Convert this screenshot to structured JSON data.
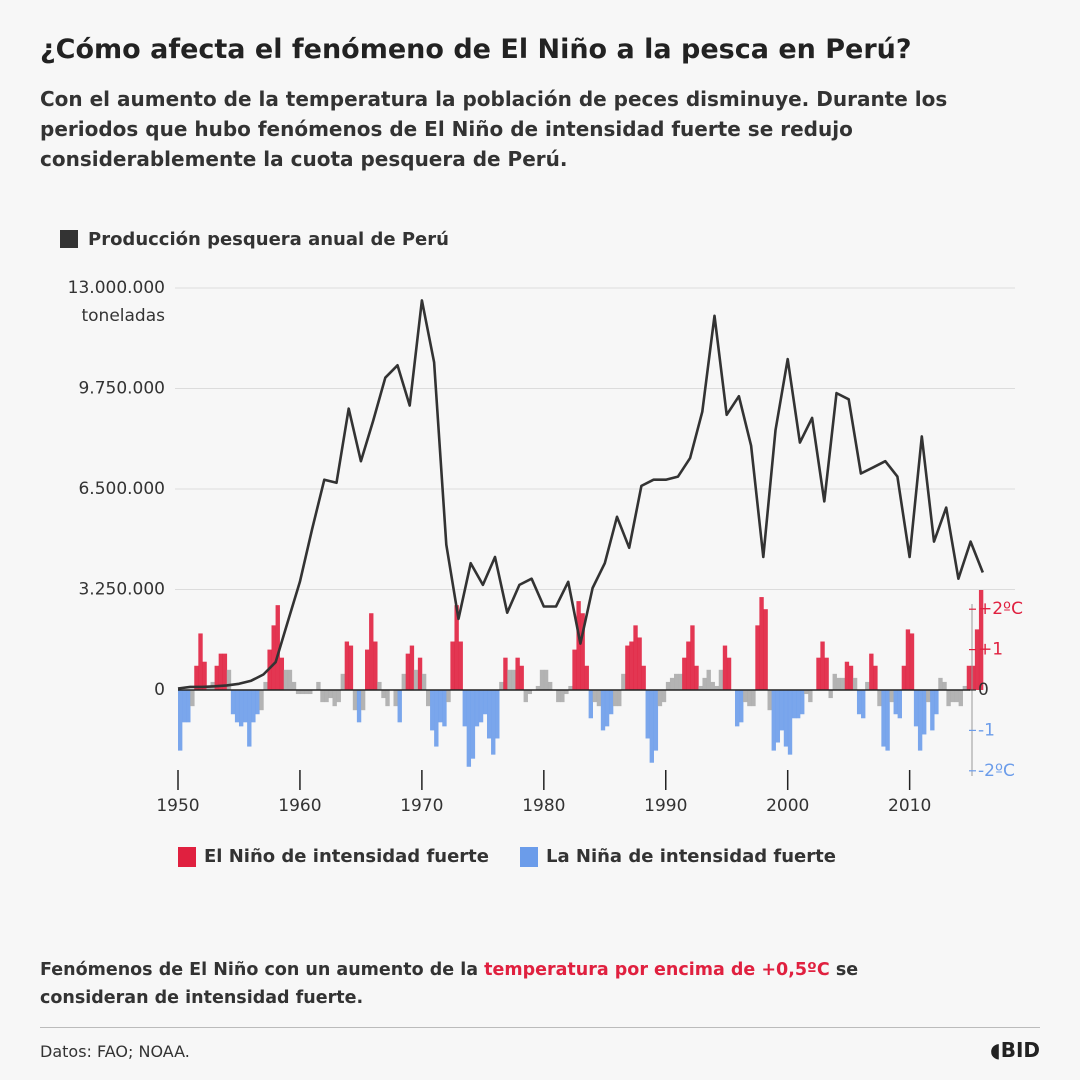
{
  "title": "¿Cómo afecta el fenómeno de El Niño a la pesca en Perú?",
  "subtitle": "Con el aumento de la temperatura la población de peces disminuye. Durante los periodos que hubo fenómenos de El Niño de intensidad fuerte se redujo considerablemente la cuota pesquera de Perú.",
  "note": {
    "before": "Fenómenos de El Niño con un aumento de la ",
    "highlight": "temperatura por encima de +0,5ºC",
    "after": " se consideran de intensidad fuerte."
  },
  "source": "Datos: FAO; NOAA.",
  "logo": "BID",
  "chart_data": [
    {
      "type": "line",
      "series": [
        {
          "name": "Producción pesquera anual de Perú",
          "color": "#333333",
          "values": [
            50000,
            100000,
            100000,
            120000,
            150000,
            200000,
            300000,
            500000,
            900000,
            2200000,
            3500000,
            5200000,
            6800000,
            6700000,
            9100000,
            7400000,
            8700000,
            10100000,
            10500000,
            9200000,
            12600000,
            10600000,
            4700000,
            2300000,
            4100000,
            3400000,
            4300000,
            2500000,
            3400000,
            3600000,
            2700000,
            2700000,
            3500000,
            1500000,
            3300000,
            4100000,
            5600000,
            4600000,
            6600000,
            6800000,
            6800000,
            6900000,
            7500000,
            9000000,
            12100000,
            8900000,
            9500000,
            7900000,
            4300000,
            8400000,
            10700000,
            8000000,
            8800000,
            6100000,
            9600000,
            9400000,
            7000000,
            7200000,
            7400000,
            6900000,
            4300000,
            8200000,
            4800000,
            5900000,
            3600000,
            4800000,
            3800000
          ]
        }
      ],
      "x": [
        1950,
        1951,
        1952,
        1953,
        1954,
        1955,
        1956,
        1957,
        1958,
        1959,
        1960,
        1961,
        1962,
        1963,
        1964,
        1965,
        1966,
        1967,
        1968,
        1969,
        1970,
        1971,
        1972,
        1973,
        1974,
        1975,
        1976,
        1977,
        1978,
        1979,
        1980,
        1981,
        1982,
        1983,
        1984,
        1985,
        1986,
        1987,
        1988,
        1989,
        1990,
        1991,
        1992,
        1993,
        1994,
        1995,
        1996,
        1997,
        1998,
        1999,
        2000,
        2001,
        2002,
        2003,
        2004,
        2005,
        2006,
        2007,
        2008,
        2009,
        2010,
        2011,
        2012,
        2013,
        2014,
        2015,
        2016
      ],
      "xlim": [
        1950,
        2017
      ],
      "xticks": [
        1950,
        1960,
        1970,
        1980,
        1990,
        2000,
        2010
      ],
      "ylim": [
        0,
        13000000
      ],
      "yticks": [
        0,
        {
          "value": 3250000,
          "label": "3.250.000"
        },
        {
          "value": 6500000,
          "label": "6.500.000"
        },
        {
          "value": 9750000,
          "label": "9.750.000"
        },
        {
          "value": 13000000,
          "label": "13.000.000"
        }
      ],
      "y_unit": "toneladas",
      "grid": true
    },
    {
      "type": "bar",
      "xlim": [
        1950,
        2016
      ],
      "ylim": [
        -2.5,
        2.5
      ],
      "yticks": [
        {
          "value": 2,
          "label": "+2ºC"
        },
        {
          "value": 1,
          "label": "+1"
        },
        0,
        -1,
        {
          "value": -2,
          "label": "-2ºC"
        }
      ],
      "strong_threshold": 0.5,
      "neutral_color": "#ababab",
      "legend": [
        {
          "name": "El Niño de intensidad fuerte",
          "color": "#e0203f"
        },
        {
          "name": "La Niña de intensidad fuerte",
          "color": "#6b9cea"
        }
      ],
      "values": [
        -1.5,
        -0.8,
        -0.8,
        -0.4,
        0.6,
        1.4,
        0.7,
        0.1,
        0.2,
        0.6,
        0.9,
        0.9,
        0.5,
        -0.6,
        -0.8,
        -0.9,
        -0.8,
        -1.4,
        -0.8,
        -0.6,
        -0.5,
        0.2,
        1.0,
        1.6,
        2.1,
        0.8,
        0.5,
        0.5,
        0.2,
        -0.1,
        -0.1,
        -0.1,
        -0.1,
        0.0,
        0.2,
        -0.3,
        -0.3,
        -0.2,
        -0.4,
        -0.3,
        0.4,
        1.2,
        1.1,
        -0.5,
        -0.8,
        -0.5,
        1.0,
        1.9,
        1.2,
        0.2,
        -0.2,
        -0.4,
        0.0,
        -0.4,
        -0.8,
        0.4,
        0.9,
        1.1,
        0.5,
        0.8,
        0.4,
        -0.4,
        -1.0,
        -1.4,
        -0.8,
        -0.9,
        -0.3,
        1.2,
        2.1,
        1.2,
        -0.9,
        -1.9,
        -1.7,
        -0.9,
        -0.8,
        -0.6,
        -1.2,
        -1.6,
        -1.2,
        0.2,
        0.8,
        0.5,
        0.5,
        0.8,
        0.6,
        -0.3,
        -0.1,
        0.0,
        0.1,
        0.5,
        0.5,
        0.2,
        0.0,
        -0.3,
        -0.3,
        -0.1,
        0.1,
        1.0,
        2.2,
        1.9,
        0.6,
        -0.7,
        -0.3,
        -0.4,
        -1.0,
        -0.9,
        -0.6,
        -0.4,
        -0.4,
        0.4,
        1.1,
        1.2,
        1.6,
        1.3,
        0.6,
        -1.2,
        -1.8,
        -1.5,
        -0.4,
        -0.3,
        0.2,
        0.3,
        0.4,
        0.4,
        0.8,
        1.2,
        1.6,
        0.6,
        0.1,
        0.3,
        0.5,
        0.2,
        0.1,
        0.5,
        1.1,
        0.8,
        0.0,
        -0.9,
        -0.8,
        -0.3,
        -0.4,
        -0.4,
        1.6,
        2.3,
        2.0,
        -0.5,
        -1.5,
        -1.3,
        -1.0,
        -1.4,
        -1.6,
        -0.7,
        -0.7,
        -0.6,
        -0.1,
        -0.3,
        0.0,
        0.8,
        1.2,
        0.8,
        -0.2,
        0.4,
        0.3,
        0.3,
        0.7,
        0.6,
        0.3,
        -0.6,
        -0.7,
        0.2,
        0.9,
        0.6,
        -0.4,
        -1.4,
        -1.5,
        -0.3,
        -0.6,
        -0.7,
        0.6,
        1.5,
        1.4,
        -0.9,
        -1.5,
        -1.1,
        -0.3,
        -1.0,
        -0.6,
        0.3,
        0.2,
        -0.4,
        -0.3,
        -0.3,
        -0.4,
        0.1,
        0.6,
        0.6,
        1.5,
        2.5
      ]
    }
  ]
}
